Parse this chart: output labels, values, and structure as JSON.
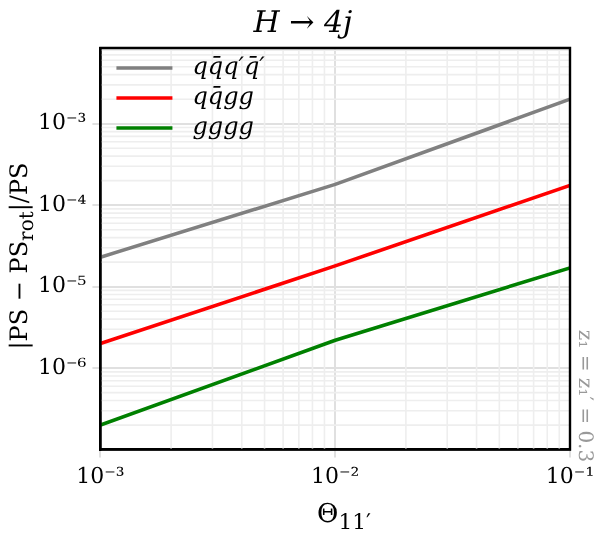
{
  "chart_data": {
    "type": "line",
    "title": "H → 4j",
    "xlabel": "Θ$_{11′}$",
    "ylabel": "|PS − PS$_{rot}$|/PS",
    "x": [
      0.001,
      0.01,
      0.1
    ],
    "series": [
      {
        "name": "qq̄q′q̄′",
        "color": "#808080",
        "values": [
          2.3e-05,
          0.00018,
          0.002
        ]
      },
      {
        "name": "qq̄gg",
        "color": "#ff0000",
        "values": [
          2e-06,
          1.8e-05,
          0.000175
        ]
      },
      {
        "name": "gggg",
        "color": "#008000",
        "values": [
          2e-07,
          2.2e-06,
          1.7e-05
        ]
      }
    ],
    "log": "xy",
    "xlim": [
      0.001,
      0.1
    ],
    "ylim": [
      1e-07,
      0.0085
    ],
    "xticks": [
      {
        "value": 0.001,
        "label": "10⁻³"
      },
      {
        "value": 0.01,
        "label": "10⁻²"
      },
      {
        "value": 0.1,
        "label": "10⁻¹"
      }
    ],
    "yticks": [
      {
        "value": 1e-06,
        "label": "10⁻⁶"
      },
      {
        "value": 1e-05,
        "label": "10⁻⁵"
      },
      {
        "value": 0.0001,
        "label": "10⁻⁴"
      },
      {
        "value": 0.001,
        "label": "10⁻³"
      }
    ],
    "grid": true,
    "legend": "top left",
    "marker": "none",
    "line_style": "solid",
    "annotations": [
      "z₁ = z₁′ = 0.3"
    ]
  }
}
